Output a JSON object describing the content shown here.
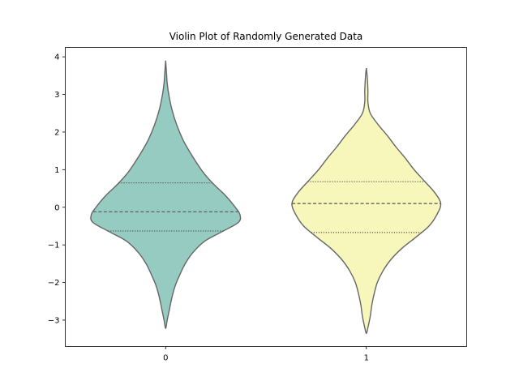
{
  "chart_data": {
    "type": "violin",
    "title": "Violin Plot of Randomly Generated Data",
    "xlabel": "",
    "ylabel": "",
    "categories": [
      "0",
      "1"
    ],
    "ylim": [
      -3.7,
      4.25
    ],
    "y_ticks": [
      -3,
      -2,
      -1,
      0,
      1,
      2,
      3,
      4
    ],
    "y_tick_labels": [
      "−3",
      "−2",
      "−1",
      "0",
      "1",
      "2",
      "3",
      "4"
    ],
    "grid": false,
    "legend": "none",
    "series": [
      {
        "category": "0",
        "color": "#96cbc1",
        "min": -3.22,
        "max": 3.9,
        "quartile_1": -0.63,
        "median": -0.12,
        "quartile_3": 0.65,
        "density_profile": [
          [
            3.9,
            0.0
          ],
          [
            3.6,
            0.01
          ],
          [
            3.3,
            0.02
          ],
          [
            3.0,
            0.04
          ],
          [
            2.6,
            0.08
          ],
          [
            2.2,
            0.14
          ],
          [
            1.8,
            0.22
          ],
          [
            1.5,
            0.3
          ],
          [
            1.2,
            0.39
          ],
          [
            0.9,
            0.49
          ],
          [
            0.6,
            0.62
          ],
          [
            0.3,
            0.77
          ],
          [
            0.0,
            0.89
          ],
          [
            -0.2,
            0.95
          ],
          [
            -0.4,
            0.93
          ],
          [
            -0.65,
            0.72
          ],
          [
            -0.9,
            0.5
          ],
          [
            -1.2,
            0.35
          ],
          [
            -1.5,
            0.25
          ],
          [
            -1.8,
            0.18
          ],
          [
            -2.1,
            0.12
          ],
          [
            -2.4,
            0.08
          ],
          [
            -2.7,
            0.05
          ],
          [
            -3.0,
            0.02
          ],
          [
            -3.22,
            0.0
          ]
        ]
      },
      {
        "category": "1",
        "color": "#f7f6bb",
        "min": -3.35,
        "max": 3.7,
        "quartile_1": -0.67,
        "median": 0.1,
        "quartile_3": 0.68,
        "density_profile": [
          [
            3.7,
            0.0
          ],
          [
            3.5,
            0.01
          ],
          [
            3.1,
            0.02
          ],
          [
            2.8,
            0.02
          ],
          [
            2.5,
            0.05
          ],
          [
            2.2,
            0.15
          ],
          [
            1.9,
            0.27
          ],
          [
            1.6,
            0.38
          ],
          [
            1.3,
            0.5
          ],
          [
            1.0,
            0.61
          ],
          [
            0.7,
            0.74
          ],
          [
            0.4,
            0.87
          ],
          [
            0.1,
            0.95
          ],
          [
            -0.2,
            0.9
          ],
          [
            -0.5,
            0.8
          ],
          [
            -0.8,
            0.63
          ],
          [
            -1.1,
            0.45
          ],
          [
            -1.4,
            0.31
          ],
          [
            -1.7,
            0.21
          ],
          [
            -2.0,
            0.14
          ],
          [
            -2.3,
            0.1
          ],
          [
            -2.6,
            0.07
          ],
          [
            -2.9,
            0.05
          ],
          [
            -3.2,
            0.02
          ],
          [
            -3.35,
            0.0
          ]
        ]
      }
    ]
  }
}
